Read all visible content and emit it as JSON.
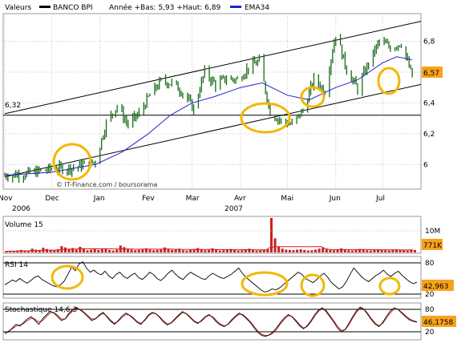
{
  "header": {
    "label": "Valeurs",
    "stock_name": "BANCO BPI",
    "range_text": "Année +Bas: 5,93 +Haut: 6,89",
    "ema_label": "EMA34"
  },
  "colors": {
    "price_bar": "#1a6b1a",
    "ema": "#2222cc",
    "volume_bar": "#cc2222",
    "volume_avg": "#cc2222",
    "rsi_line": "#000000",
    "stoch_k": "#000000",
    "stoch_d": "#cc2222",
    "annotation_circle": "#f2b800",
    "grid": "#c8c8c8",
    "value_box": "#f7a21b"
  },
  "chart_data": [
    {
      "type": "bar",
      "title": "BANCO BPI",
      "panel": "price",
      "x_ticks": [
        "Nov",
        "Dec",
        "Jan",
        "Fev",
        "Mar",
        "Avr",
        "Mai",
        "Jun",
        "Jul"
      ],
      "x_year_labels": [
        "2006",
        "2007"
      ],
      "y_ticks": [
        "6",
        "6,2",
        "6,4",
        "6,6",
        "6,8"
      ],
      "ylim": [
        5.84,
        6.98
      ],
      "grid": true,
      "reference_line": {
        "label": "6,32",
        "value": 6.32
      },
      "current_value": "6,57",
      "watermark": "© IT-Finance.com / boursorama",
      "close_series": [
        [
          "2006-11-01",
          5.93
        ],
        [
          "2006-11-15",
          5.94
        ],
        [
          "2006-12-01",
          5.97
        ],
        [
          "2006-12-15",
          5.98
        ],
        [
          "2006-12-29",
          6.02
        ],
        [
          "2007-01-05",
          6.27
        ],
        [
          "2007-01-12",
          6.38
        ],
        [
          "2007-01-19",
          6.26
        ],
        [
          "2007-01-26",
          6.33
        ],
        [
          "2007-02-02",
          6.45
        ],
        [
          "2007-02-09",
          6.54
        ],
        [
          "2007-02-16",
          6.53
        ],
        [
          "2007-02-23",
          6.47
        ],
        [
          "2007-03-02",
          6.36
        ],
        [
          "2007-03-09",
          6.6
        ],
        [
          "2007-03-16",
          6.52
        ],
        [
          "2007-03-23",
          6.56
        ],
        [
          "2007-03-30",
          6.55
        ],
        [
          "2007-04-06",
          6.63
        ],
        [
          "2007-04-13",
          6.67
        ],
        [
          "2007-04-20",
          6.34
        ],
        [
          "2007-04-27",
          6.28
        ],
        [
          "2007-05-04",
          6.26
        ],
        [
          "2007-05-11",
          6.35
        ],
        [
          "2007-05-18",
          6.55
        ],
        [
          "2007-05-25",
          6.48
        ],
        [
          "2007-06-01",
          6.85
        ],
        [
          "2007-06-08",
          6.62
        ],
        [
          "2007-06-15",
          6.49
        ],
        [
          "2007-06-22",
          6.66
        ],
        [
          "2007-06-29",
          6.8
        ],
        [
          "2007-07-06",
          6.76
        ],
        [
          "2007-07-13",
          6.79
        ],
        [
          "2007-07-20",
          6.57
        ]
      ],
      "ema34": [
        [
          "2006-11-01",
          5.93
        ],
        [
          "2006-12-01",
          5.95
        ],
        [
          "2006-12-29",
          6.0
        ],
        [
          "2007-01-15",
          6.08
        ],
        [
          "2007-02-01",
          6.2
        ],
        [
          "2007-02-15",
          6.32
        ],
        [
          "2007-03-01",
          6.4
        ],
        [
          "2007-03-15",
          6.44
        ],
        [
          "2007-04-01",
          6.5
        ],
        [
          "2007-04-15",
          6.53
        ],
        [
          "2007-05-01",
          6.45
        ],
        [
          "2007-05-15",
          6.42
        ],
        [
          "2007-06-01",
          6.5
        ],
        [
          "2007-06-15",
          6.55
        ],
        [
          "2007-07-01",
          6.66
        ],
        [
          "2007-07-10",
          6.7
        ],
        [
          "2007-07-20",
          6.68
        ]
      ],
      "channel_upper": [
        [
          "2006-11-01",
          6.33
        ],
        [
          "2007-07-20",
          6.91
        ]
      ],
      "channel_lower": [
        [
          "2006-11-01",
          5.92
        ],
        [
          "2007-07-20",
          6.5
        ]
      ]
    },
    {
      "type": "bar",
      "title": "Volume 15",
      "panel": "volume",
      "y_ticks": [
        "10M"
      ],
      "current_value": "771K",
      "values_m": [
        0.3,
        0.5,
        0.4,
        0.6,
        0.8,
        0.5,
        0.4,
        1.2,
        0.9,
        0.7,
        1.5,
        1.1,
        0.8,
        0.6,
        1.0,
        2.0,
        1.6,
        1.2,
        1.4,
        0.9,
        1.8,
        1.3,
        0.7,
        0.9,
        1.1,
        0.8,
        1.0,
        1.2,
        0.8,
        0.6,
        0.9,
        2.2,
        1.7,
        1.1,
        0.9,
        0.7,
        0.8,
        1.0,
        1.3,
        0.9,
        0.7,
        0.8,
        1.1,
        1.6,
        1.0,
        0.8,
        0.9,
        1.2,
        0.7,
        0.6,
        0.8,
        1.0,
        1.4,
        0.9,
        0.7,
        0.8,
        1.3,
        0.9,
        0.6,
        0.7,
        0.9,
        1.1,
        0.8,
        0.6,
        0.7,
        0.9,
        1.2,
        0.8,
        0.6,
        0.7,
        0.9,
        1.0,
        11.0,
        4.5,
        1.8,
        1.2,
        0.9,
        0.8,
        0.7,
        0.9,
        1.0,
        0.8,
        0.6,
        0.7,
        0.9,
        1.2,
        1.5,
        1.0,
        0.8,
        0.7,
        0.9,
        1.3,
        0.9,
        0.7,
        0.6,
        0.8,
        1.1,
        0.9,
        0.7,
        0.6,
        0.8,
        1.0,
        0.9,
        0.7,
        0.6,
        0.8,
        1.0,
        0.8,
        0.7,
        0.6,
        0.9,
        0.8
      ]
    },
    {
      "type": "line",
      "title": "RSI 14",
      "panel": "rsi",
      "y_ticks": [
        "80",
        "20"
      ],
      "ylim": [
        10,
        90
      ],
      "current_value": "42,963",
      "values": [
        38,
        42,
        47,
        44,
        50,
        45,
        41,
        46,
        52,
        55,
        48,
        44,
        40,
        36,
        34,
        38,
        45,
        58,
        72,
        65,
        78,
        82,
        70,
        62,
        66,
        60,
        57,
        64,
        55,
        50,
        58,
        62,
        54,
        50,
        56,
        60,
        52,
        48,
        54,
        62,
        58,
        50,
        46,
        52,
        60,
        66,
        58,
        52,
        48,
        56,
        62,
        58,
        54,
        50,
        48,
        55,
        60,
        56,
        52,
        50,
        54,
        58,
        64,
        70,
        60,
        52,
        46,
        40,
        34,
        28,
        24,
        26,
        30,
        28,
        32,
        38,
        44,
        50,
        56,
        62,
        58,
        50,
        46,
        42,
        48,
        55,
        60,
        52,
        42,
        36,
        30,
        34,
        44,
        58,
        70,
        62,
        54,
        48,
        44,
        50,
        56,
        60,
        66,
        58,
        54,
        60,
        64,
        56,
        50,
        44,
        40,
        43
      ]
    },
    {
      "type": "line",
      "title": "Stochastique 14,6,3",
      "panel": "stochastic",
      "y_ticks": [
        "80",
        "20"
      ],
      "ylim": [
        0,
        100
      ],
      "current_value": "46,1758",
      "k": [
        15,
        20,
        30,
        40,
        35,
        45,
        55,
        60,
        50,
        40,
        55,
        65,
        75,
        70,
        60,
        50,
        55,
        70,
        80,
        85,
        78,
        70,
        60,
        50,
        55,
        65,
        72,
        60,
        48,
        40,
        50,
        62,
        70,
        64,
        55,
        45,
        40,
        52,
        65,
        72,
        68,
        58,
        46,
        38,
        44,
        55,
        65,
        74,
        68,
        58,
        48,
        42,
        50,
        60,
        66,
        58,
        46,
        38,
        34,
        40,
        52,
        62,
        70,
        64,
        54,
        44,
        30,
        18,
        10,
        8,
        12,
        20,
        32,
        46,
        58,
        66,
        60,
        48,
        36,
        28,
        36,
        50,
        66,
        78,
        84,
        74,
        60,
        46,
        30,
        20,
        26,
        42,
        60,
        76,
        86,
        80,
        66,
        52,
        40,
        34,
        46,
        62,
        76,
        84,
        80,
        70,
        60,
        52,
        48,
        46
      ],
      "d": [
        18,
        22,
        28,
        35,
        38,
        42,
        50,
        56,
        54,
        46,
        50,
        60,
        70,
        72,
        64,
        54,
        54,
        66,
        76,
        82,
        80,
        72,
        63,
        54,
        55,
        63,
        69,
        62,
        51,
        43,
        48,
        58,
        66,
        65,
        58,
        48,
        42,
        50,
        62,
        70,
        68,
        60,
        49,
        41,
        43,
        52,
        62,
        71,
        69,
        60,
        50,
        44,
        48,
        58,
        64,
        60,
        50,
        41,
        36,
        39,
        49,
        59,
        67,
        66,
        57,
        47,
        34,
        22,
        13,
        10,
        11,
        17,
        28,
        42,
        54,
        63,
        61,
        51,
        39,
        30,
        34,
        47,
        62,
        75,
        82,
        77,
        64,
        50,
        35,
        24,
        25,
        38,
        56,
        72,
        83,
        81,
        69,
        55,
        43,
        36,
        43,
        57,
        71,
        81,
        80,
        72,
        63,
        55,
        50,
        47
      ]
    }
  ],
  "annotations": [
    "circle-1",
    "circle-2",
    "circle-3",
    "circle-4",
    "rsi-circle-1",
    "rsi-circle-2",
    "rsi-circle-3",
    "rsi-circle-4"
  ]
}
